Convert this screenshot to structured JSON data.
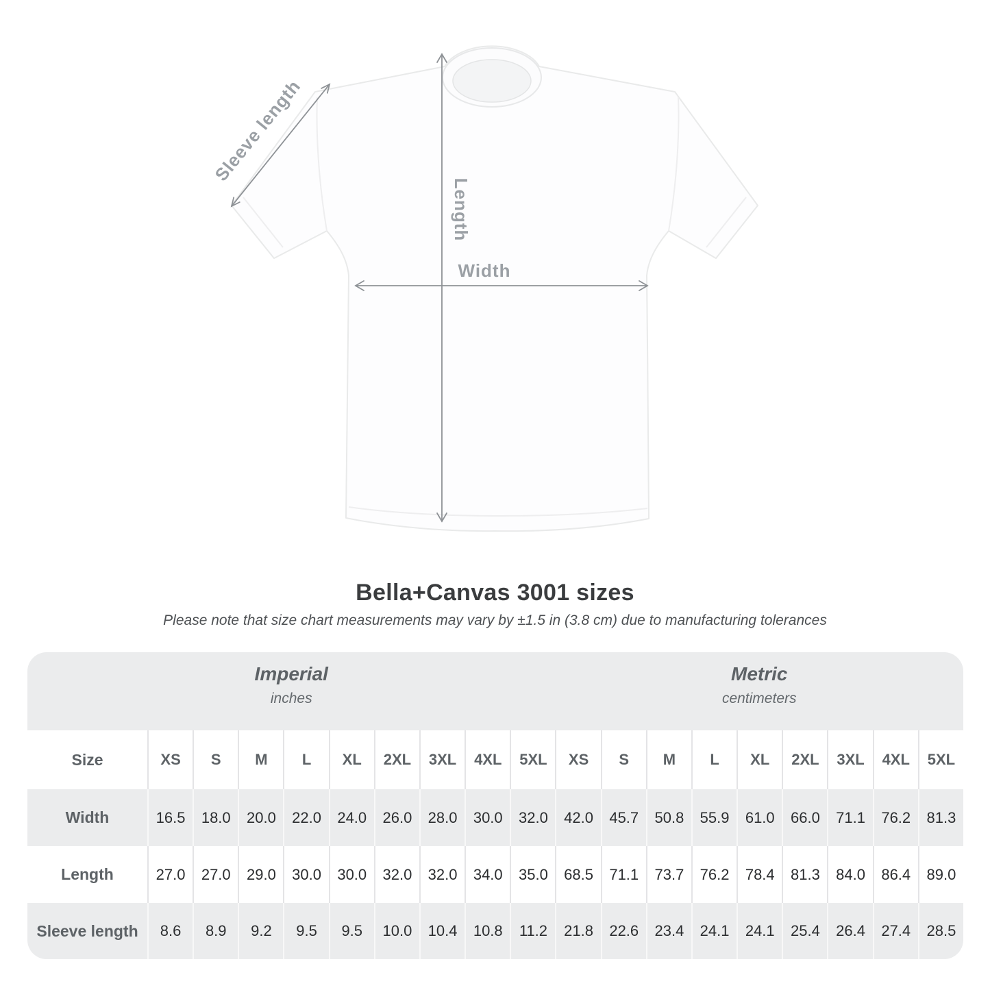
{
  "diagram": {
    "sleeve_label": "Sleeve length",
    "length_label": "Length",
    "width_label": "Width"
  },
  "title": "Bella+Canvas 3001 sizes",
  "note": "Please note that size chart measurements may vary by ±1.5 in (3.8 cm) due to manufacturing tolerances",
  "chart_data": {
    "type": "table",
    "title": "Bella+Canvas 3001 sizes",
    "unit_groups": [
      {
        "label": "Imperial",
        "unit": "inches"
      },
      {
        "label": "Metric",
        "unit": "centimeters"
      }
    ],
    "corner_header": "Size",
    "sizes": [
      "XS",
      "S",
      "M",
      "L",
      "XL",
      "2XL",
      "3XL",
      "4XL",
      "5XL"
    ],
    "rows": [
      {
        "label": "Width",
        "imperial": [
          "16.5",
          "18.0",
          "20.0",
          "22.0",
          "24.0",
          "26.0",
          "28.0",
          "30.0",
          "32.0"
        ],
        "metric": [
          "42.0",
          "45.7",
          "50.8",
          "55.9",
          "61.0",
          "66.0",
          "71.1",
          "76.2",
          "81.3"
        ]
      },
      {
        "label": "Length",
        "imperial": [
          "27.0",
          "27.0",
          "29.0",
          "30.0",
          "30.0",
          "32.0",
          "32.0",
          "34.0",
          "35.0"
        ],
        "metric": [
          "68.5",
          "71.1",
          "73.7",
          "76.2",
          "78.4",
          "81.3",
          "84.0",
          "86.4",
          "89.0"
        ]
      },
      {
        "label": "Sleeve length",
        "imperial": [
          "8.6",
          "8.9",
          "9.2",
          "9.5",
          "9.5",
          "10.0",
          "10.4",
          "10.8",
          "11.2"
        ],
        "metric": [
          "21.8",
          "22.6",
          "23.4",
          "24.1",
          "24.1",
          "25.4",
          "26.4",
          "27.4",
          "28.5"
        ]
      }
    ]
  },
  "colors": {
    "table_band": "#ebeced",
    "separator_on_white": "#e4e4e6",
    "separator_on_gray": "#f8f8f8",
    "header_text": "#5d6266",
    "value_text": "#2c2e30",
    "arrow": "#8e9296",
    "diagram_label": "#9ba0a5",
    "title_text": "#3a3c3e"
  }
}
